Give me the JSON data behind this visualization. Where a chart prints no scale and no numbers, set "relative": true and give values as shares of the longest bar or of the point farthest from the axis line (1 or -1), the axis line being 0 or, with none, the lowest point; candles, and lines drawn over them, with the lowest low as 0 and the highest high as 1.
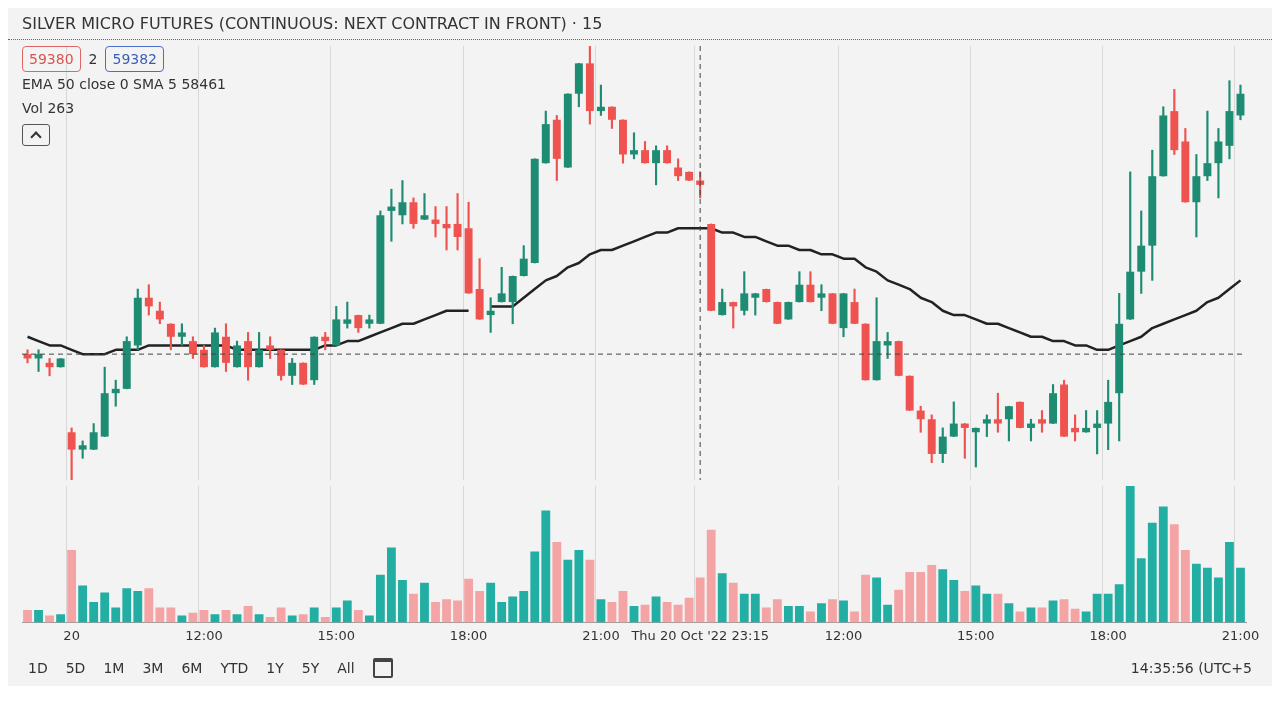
{
  "chart_data": [
    {
      "type": "candlestick",
      "relative": true,
      "title": "SILVER MICRO FUTURES (CONTINUOUS: NEXT CONTRACT IN FRONT) · 15",
      "grid": "x",
      "tick_labels": false,
      "annotations": [
        "59380",
        "2",
        "59382",
        "EMA 50 close 0 SMA 5  58461",
        "Vol 263"
      ],
      "categories": [
        null,
        null,
        null,
        null,
        "20",
        null,
        null,
        null,
        null,
        null,
        null,
        null,
        null,
        null,
        null,
        null,
        "12:00",
        null,
        null,
        null,
        null,
        null,
        null,
        null,
        null,
        null,
        null,
        null,
        "15:00",
        null,
        null,
        null,
        null,
        null,
        null,
        null,
        null,
        null,
        null,
        null,
        "18:00",
        null,
        null,
        null,
        null,
        null,
        null,
        null,
        null,
        null,
        null,
        null,
        "21:00",
        null,
        null,
        null,
        null,
        null,
        null,
        null,
        null,
        "Thu 20 Oct '22 23:15",
        null,
        null,
        null,
        null,
        null,
        null,
        null,
        null,
        null,
        null,
        null,
        null,
        "12:00",
        null,
        null,
        null,
        null,
        null,
        null,
        null,
        null,
        null,
        null,
        null,
        "15:00",
        null,
        null,
        null,
        null,
        null,
        null,
        null,
        null,
        null,
        null,
        null,
        "18:00",
        null,
        null,
        null,
        null,
        null,
        null,
        null,
        null,
        null,
        null,
        null,
        "21:00"
      ],
      "ohlc": [
        [
          0.29,
          0.3,
          0.27,
          0.28
        ],
        [
          0.28,
          0.3,
          0.25,
          0.29
        ],
        [
          0.27,
          0.28,
          0.24,
          0.26
        ],
        [
          0.26,
          0.28,
          0.26,
          0.28
        ],
        [
          0.11,
          0.12,
          0,
          0.07
        ],
        [
          0.07,
          0.09,
          0.05,
          0.08
        ],
        [
          0.07,
          0.13,
          0.07,
          0.11
        ],
        [
          0.1,
          0.26,
          0.1,
          0.2
        ],
        [
          0.2,
          0.23,
          0.17,
          0.21
        ],
        [
          0.21,
          0.33,
          0.21,
          0.32
        ],
        [
          0.31,
          0.44,
          0.3,
          0.42
        ],
        [
          0.42,
          0.45,
          0.38,
          0.4
        ],
        [
          0.39,
          0.41,
          0.36,
          0.37
        ],
        [
          0.36,
          0.36,
          0.3,
          0.33
        ],
        [
          0.33,
          0.36,
          0.31,
          0.34
        ],
        [
          0.32,
          0.33,
          0.28,
          0.29
        ],
        [
          0.3,
          0.31,
          0.26,
          0.26
        ],
        [
          0.26,
          0.35,
          0.26,
          0.34
        ],
        [
          0.33,
          0.36,
          0.25,
          0.27
        ],
        [
          0.26,
          0.32,
          0.26,
          0.31
        ],
        [
          0.32,
          0.34,
          0.23,
          0.26
        ],
        [
          0.26,
          0.34,
          0.26,
          0.3
        ],
        [
          0.31,
          0.33,
          0.28,
          0.3
        ],
        [
          0.3,
          0.3,
          0.23,
          0.24
        ],
        [
          0.24,
          0.28,
          0.22,
          0.27
        ],
        [
          0.27,
          0.27,
          0.22,
          0.22
        ],
        [
          0.23,
          0.33,
          0.22,
          0.33
        ],
        [
          0.33,
          0.34,
          0.3,
          0.32
        ],
        [
          0.31,
          0.4,
          0.31,
          0.37
        ],
        [
          0.36,
          0.41,
          0.35,
          0.37
        ],
        [
          0.38,
          0.38,
          0.34,
          0.35
        ],
        [
          0.36,
          0.38,
          0.35,
          0.37
        ],
        [
          0.36,
          0.62,
          0.36,
          0.61
        ],
        [
          0.62,
          0.67,
          0.55,
          0.63
        ],
        [
          0.61,
          0.69,
          0.59,
          0.64
        ],
        [
          0.64,
          0.65,
          0.58,
          0.59
        ],
        [
          0.6,
          0.66,
          0.6,
          0.61
        ],
        [
          0.6,
          0.63,
          0.56,
          0.59
        ],
        [
          0.59,
          0.63,
          0.53,
          0.58
        ],
        [
          0.59,
          0.66,
          0.53,
          0.56
        ],
        [
          0.58,
          0.64,
          0.43,
          0.43
        ],
        [
          0.44,
          0.51,
          0.37,
          0.37
        ],
        [
          0.38,
          0.42,
          0.34,
          0.39
        ],
        [
          0.41,
          0.49,
          0.41,
          0.43
        ],
        [
          0.41,
          0.47,
          0.36,
          0.47
        ],
        [
          0.47,
          0.54,
          0.47,
          0.51
        ],
        [
          0.5,
          0.74,
          0.5,
          0.74
        ],
        [
          0.73,
          0.85,
          0.73,
          0.82
        ],
        [
          0.83,
          0.84,
          0.69,
          0.74
        ],
        [
          0.72,
          0.89,
          0.72,
          0.89
        ],
        [
          0.89,
          0.96,
          0.86,
          0.96
        ],
        [
          0.96,
          1,
          0.82,
          0.85
        ],
        [
          0.85,
          0.91,
          0.84,
          0.86
        ],
        [
          0.86,
          0.86,
          0.81,
          0.83
        ],
        [
          0.83,
          0.83,
          0.73,
          0.75
        ],
        [
          0.75,
          0.8,
          0.74,
          0.76
        ],
        [
          0.76,
          0.78,
          0.73,
          0.73
        ],
        [
          0.73,
          0.77,
          0.68,
          0.76
        ],
        [
          0.76,
          0.77,
          0.73,
          0.73
        ],
        [
          0.72,
          0.74,
          0.69,
          0.7
        ],
        [
          0.71,
          0.71,
          0.69,
          0.69
        ],
        [
          0.69,
          0.71,
          0.65,
          0.68
        ],
        [
          0.59,
          0.59,
          0.39,
          0.39
        ],
        [
          0.38,
          0.44,
          0.38,
          0.41
        ],
        [
          0.41,
          0.41,
          0.35,
          0.4
        ],
        [
          0.39,
          0.48,
          0.38,
          0.43
        ],
        [
          0.42,
          0.43,
          0.38,
          0.43
        ],
        [
          0.44,
          0.44,
          0.41,
          0.41
        ],
        [
          0.41,
          0.41,
          0.36,
          0.36
        ],
        [
          0.37,
          0.41,
          0.37,
          0.41
        ],
        [
          0.41,
          0.48,
          0.41,
          0.45
        ],
        [
          0.45,
          0.48,
          0.41,
          0.41
        ],
        [
          0.42,
          0.45,
          0.39,
          0.43
        ],
        [
          0.43,
          0.43,
          0.36,
          0.36
        ],
        [
          0.35,
          0.43,
          0.33,
          0.43
        ],
        [
          0.41,
          0.44,
          0.36,
          0.36
        ],
        [
          0.36,
          0.36,
          0.23,
          0.23
        ],
        [
          0.23,
          0.42,
          0.23,
          0.32
        ],
        [
          0.31,
          0.34,
          0.28,
          0.32
        ],
        [
          0.32,
          0.32,
          0.24,
          0.24
        ],
        [
          0.24,
          0.24,
          0.16,
          0.16
        ],
        [
          0.16,
          0.17,
          0.11,
          0.14
        ],
        [
          0.14,
          0.15,
          0.04,
          0.06
        ],
        [
          0.06,
          0.12,
          0.04,
          0.1
        ],
        [
          0.1,
          0.18,
          0.1,
          0.13
        ],
        [
          0.13,
          0.13,
          0.05,
          0.12
        ],
        [
          0.11,
          0.12,
          0.03,
          0.12
        ],
        [
          0.13,
          0.15,
          0.1,
          0.14
        ],
        [
          0.14,
          0.2,
          0.11,
          0.13
        ],
        [
          0.14,
          0.17,
          0.09,
          0.17
        ],
        [
          0.18,
          0.18,
          0.12,
          0.12
        ],
        [
          0.12,
          0.14,
          0.09,
          0.13
        ],
        [
          0.14,
          0.16,
          0.11,
          0.13
        ],
        [
          0.13,
          0.22,
          0.13,
          0.2
        ],
        [
          0.22,
          0.23,
          0.1,
          0.1
        ],
        [
          0.12,
          0.15,
          0.09,
          0.11
        ],
        [
          0.11,
          0.16,
          0.11,
          0.12
        ],
        [
          0.12,
          0.16,
          0.06,
          0.13
        ],
        [
          0.13,
          0.23,
          0.07,
          0.18
        ],
        [
          0.2,
          0.43,
          0.09,
          0.36
        ],
        [
          0.37,
          0.71,
          0.37,
          0.48
        ],
        [
          0.48,
          0.62,
          0.43,
          0.54
        ],
        [
          0.54,
          0.76,
          0.46,
          0.7
        ],
        [
          0.7,
          0.86,
          0.7,
          0.84
        ],
        [
          0.85,
          0.9,
          0.75,
          0.76
        ],
        [
          0.78,
          0.81,
          0.64,
          0.64
        ],
        [
          0.64,
          0.75,
          0.56,
          0.7
        ],
        [
          0.7,
          0.85,
          0.69,
          0.73
        ],
        [
          0.73,
          0.81,
          0.65,
          0.78
        ],
        [
          0.77,
          0.92,
          0.74,
          0.85
        ],
        [
          0.84,
          0.91,
          0.83,
          0.89
        ]
      ],
      "colors": [
        "#ef5350",
        "#1e8c72",
        "#ef5350",
        "#1e8c72",
        "#ef5350",
        "#1e8c72",
        "#1e8c72",
        "#1e8c72",
        "#1e8c72",
        "#1e8c72",
        "#1e8c72",
        "#ef5350",
        "#ef5350",
        "#ef5350",
        "#1e8c72",
        "#ef5350",
        "#ef5350",
        "#1e8c72",
        "#ef5350",
        "#1e8c72",
        "#ef5350",
        "#1e8c72",
        "#ef5350",
        "#ef5350",
        "#1e8c72",
        "#ef5350",
        "#1e8c72",
        "#ef5350",
        "#1e8c72",
        "#1e8c72",
        "#ef5350",
        "#1e8c72",
        "#1e8c72",
        "#1e8c72",
        "#1e8c72",
        "#ef5350",
        "#1e8c72",
        "#ef5350",
        "#ef5350",
        "#ef5350",
        "#ef5350",
        "#ef5350",
        "#1e8c72",
        "#1e8c72",
        "#1e8c72",
        "#1e8c72",
        "#1e8c72",
        "#1e8c72",
        "#ef5350",
        "#1e8c72",
        "#1e8c72",
        "#ef5350",
        "#1e8c72",
        "#ef5350",
        "#ef5350",
        "#1e8c72",
        "#ef5350",
        "#1e8c72",
        "#ef5350",
        "#ef5350",
        "#ef5350",
        "#ef5350",
        "#ef5350",
        "#1e8c72",
        "#ef5350",
        "#1e8c72",
        "#1e8c72",
        "#ef5350",
        "#ef5350",
        "#1e8c72",
        "#1e8c72",
        "#ef5350",
        "#1e8c72",
        "#ef5350",
        "#1e8c72",
        "#ef5350",
        "#ef5350",
        "#1e8c72",
        "#1e8c72",
        "#ef5350",
        "#ef5350",
        "#ef5350",
        "#ef5350",
        "#1e8c72",
        "#1e8c72",
        "#ef5350",
        "#1e8c72",
        "#1e8c72",
        "#ef5350",
        "#1e8c72",
        "#ef5350",
        "#1e8c72",
        "#ef5350",
        "#1e8c72",
        "#ef5350",
        "#ef5350",
        "#1e8c72",
        "#1e8c72",
        "#1e8c72",
        "#1e8c72",
        "#1e8c72",
        "#1e8c72",
        "#1e8c72",
        "#1e8c72",
        "#ef5350",
        "#ef5350",
        "#1e8c72",
        "#1e8c72",
        "#1e8c72",
        "#1e8c72",
        "#1e8c72"
      ],
      "series": [
        {
          "type": "line",
          "color": "#222222",
          "values": [
            0.33,
            0.32,
            0.31,
            0.31,
            0.3,
            0.29,
            0.29,
            0.29,
            0.3,
            0.3,
            0.3,
            0.31,
            0.31,
            0.31,
            0.31,
            0.31,
            0.31,
            0.31,
            0.31,
            0.3,
            0.3,
            0.3,
            0.3,
            0.3,
            0.3,
            0.3,
            0.3,
            0.31,
            0.31,
            0.32,
            0.32,
            0.33,
            0.34,
            0.35,
            0.36,
            0.36,
            0.37,
            0.38,
            0.39,
            0.39,
            0.39,
            null,
            0.4,
            0.4,
            0.4,
            0.42,
            0.44,
            0.46,
            0.47,
            0.49,
            0.5,
            0.52,
            0.53,
            0.53,
            0.54,
            0.55,
            0.56,
            0.57,
            0.57,
            0.58,
            0.58,
            0.58,
            0.58,
            0.57,
            0.57,
            0.56,
            0.56,
            0.55,
            0.54,
            0.54,
            0.53,
            0.53,
            0.52,
            0.52,
            0.51,
            0.51,
            0.49,
            0.48,
            0.46,
            0.45,
            0.44,
            0.42,
            0.41,
            0.39,
            0.38,
            0.38,
            0.37,
            0.36,
            0.36,
            0.35,
            0.34,
            0.33,
            0.33,
            0.32,
            0.32,
            0.31,
            0.31,
            0.3,
            0.3,
            0.31,
            0.32,
            0.33,
            0.35,
            0.36,
            0.37,
            0.38,
            0.39,
            0.41,
            0.42,
            0.44,
            0.46
          ]
        }
      ],
      "ref_lines": [
        {
          "axis": "y",
          "value": 0.29,
          "color": "#444444",
          "line_style": "dashed"
        },
        {
          "axis": "x",
          "value": "Thu 20 Oct '22 23:15",
          "color": "#444444",
          "line_style": "dashed"
        }
      ]
    },
    {
      "type": "bar",
      "relative": true,
      "grid": "x",
      "tick_labels": "x",
      "annotations": [
        "1D",
        "5D",
        "1M",
        "3M",
        "6M",
        "YTD",
        "1Y",
        "5Y",
        "All",
        "14:35:56 (UTC+5"
      ],
      "categories": [
        null,
        null,
        null,
        null,
        "20",
        null,
        null,
        null,
        null,
        null,
        null,
        null,
        null,
        null,
        null,
        null,
        "12:00",
        null,
        null,
        null,
        null,
        null,
        null,
        null,
        null,
        null,
        null,
        null,
        "15:00",
        null,
        null,
        null,
        null,
        null,
        null,
        null,
        null,
        null,
        null,
        null,
        "18:00",
        null,
        null,
        null,
        null,
        null,
        null,
        null,
        null,
        null,
        null,
        null,
        "21:00",
        null,
        null,
        null,
        null,
        null,
        null,
        null,
        null,
        "Thu 20 Oct '22 23:15",
        null,
        null,
        null,
        null,
        null,
        null,
        null,
        null,
        null,
        null,
        null,
        null,
        "12:00",
        null,
        null,
        null,
        null,
        null,
        null,
        null,
        null,
        null,
        null,
        null,
        "15:00",
        null,
        null,
        null,
        null,
        null,
        null,
        null,
        null,
        null,
        null,
        null,
        "18:00",
        null,
        null,
        null,
        null,
        null,
        null,
        null,
        null,
        null,
        null,
        null,
        "21:00"
      ],
      "values": [
        0.09,
        0.09,
        0.05,
        0.06,
        0.53,
        0.27,
        0.15,
        0.22,
        0.11,
        0.25,
        0.23,
        0.25,
        0.11,
        0.11,
        0.05,
        0.07,
        0.09,
        0.06,
        0.09,
        0.06,
        0.12,
        0.06,
        0.04,
        0.11,
        0.05,
        0.06,
        0.11,
        0.04,
        0.11,
        0.16,
        0.09,
        0.05,
        0.35,
        0.55,
        0.31,
        0.21,
        0.29,
        0.15,
        0.17,
        0.16,
        0.32,
        0.23,
        0.29,
        0.15,
        0.19,
        0.23,
        0.52,
        0.82,
        0.59,
        0.46,
        0.53,
        0.46,
        0.17,
        0.15,
        0.23,
        0.12,
        0.13,
        0.19,
        0.15,
        0.13,
        0.18,
        0.33,
        0.68,
        0.36,
        0.29,
        0.21,
        0.21,
        0.11,
        0.17,
        0.12,
        0.12,
        0.08,
        0.14,
        0.17,
        0.16,
        0.08,
        0.35,
        0.33,
        0.13,
        0.24,
        0.37,
        0.37,
        0.42,
        0.39,
        0.31,
        0.23,
        0.27,
        0.21,
        0.21,
        0.14,
        0.08,
        0.11,
        0.11,
        0.16,
        0.17,
        0.1,
        0.08,
        0.21,
        0.21,
        0.28,
        1,
        0.47,
        0.73,
        0.85,
        0.72,
        0.53,
        0.43,
        0.4,
        0.33,
        0.59,
        0.4
      ],
      "colors": [
        "#f4a4a4",
        "#22aea2",
        "#f4a4a4",
        "#22aea2",
        "#f4a4a4",
        "#22aea2",
        "#22aea2",
        "#22aea2",
        "#22aea2",
        "#22aea2",
        "#22aea2",
        "#f4a4a4",
        "#f4a4a4",
        "#f4a4a4",
        "#22aea2",
        "#f4a4a4",
        "#f4a4a4",
        "#22aea2",
        "#f4a4a4",
        "#22aea2",
        "#f4a4a4",
        "#22aea2",
        "#f4a4a4",
        "#f4a4a4",
        "#22aea2",
        "#f4a4a4",
        "#22aea2",
        "#f4a4a4",
        "#22aea2",
        "#22aea2",
        "#f4a4a4",
        "#22aea2",
        "#22aea2",
        "#22aea2",
        "#22aea2",
        "#f4a4a4",
        "#22aea2",
        "#f4a4a4",
        "#f4a4a4",
        "#f4a4a4",
        "#f4a4a4",
        "#f4a4a4",
        "#22aea2",
        "#22aea2",
        "#22aea2",
        "#22aea2",
        "#22aea2",
        "#22aea2",
        "#f4a4a4",
        "#22aea2",
        "#22aea2",
        "#f4a4a4",
        "#22aea2",
        "#f4a4a4",
        "#f4a4a4",
        "#22aea2",
        "#f4a4a4",
        "#22aea2",
        "#f4a4a4",
        "#f4a4a4",
        "#f4a4a4",
        "#f4a4a4",
        "#f4a4a4",
        "#22aea2",
        "#f4a4a4",
        "#22aea2",
        "#22aea2",
        "#f4a4a4",
        "#f4a4a4",
        "#22aea2",
        "#22aea2",
        "#f4a4a4",
        "#22aea2",
        "#f4a4a4",
        "#22aea2",
        "#f4a4a4",
        "#f4a4a4",
        "#22aea2",
        "#22aea2",
        "#f4a4a4",
        "#f4a4a4",
        "#f4a4a4",
        "#f4a4a4",
        "#22aea2",
        "#22aea2",
        "#f4a4a4",
        "#22aea2",
        "#22aea2",
        "#f4a4a4",
        "#22aea2",
        "#f4a4a4",
        "#22aea2",
        "#f4a4a4",
        "#22aea2",
        "#f4a4a4",
        "#f4a4a4",
        "#22aea2",
        "#22aea2",
        "#22aea2",
        "#22aea2",
        "#22aea2",
        "#22aea2",
        "#22aea2",
        "#22aea2",
        "#f4a4a4",
        "#f4a4a4",
        "#22aea2",
        "#22aea2",
        "#22aea2",
        "#22aea2",
        "#22aea2"
      ]
    }
  ]
}
